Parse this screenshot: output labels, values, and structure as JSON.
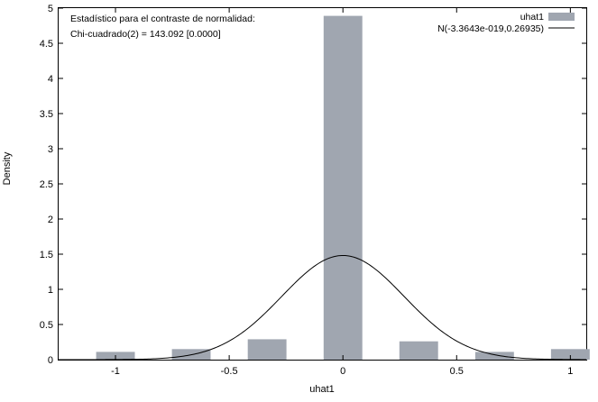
{
  "chart_data": {
    "type": "bar",
    "title": "",
    "xlabel": "uhat1",
    "ylabel": "Density",
    "xlim": [
      -1.25,
      1.07
    ],
    "ylim": [
      0,
      5
    ],
    "xticks": [
      -1,
      -0.5,
      0,
      0.5,
      1
    ],
    "xtick_labels": [
      "-1",
      "-0.5",
      "0",
      "0.5",
      "1"
    ],
    "yticks": [
      0,
      0.5,
      1,
      1.5,
      2,
      2.5,
      3,
      3.5,
      4,
      4.5,
      5
    ],
    "ytick_labels": [
      "0",
      "0.5",
      "1",
      "1.5",
      "2",
      "2.5",
      "3",
      "3.5",
      "4",
      "4.5",
      "5"
    ],
    "grid": false,
    "legend_position": "top-right",
    "bar_width": 0.17,
    "series": [
      {
        "name": "uhat1",
        "type": "bar",
        "color": "#a0a6b0",
        "x": [
          -1.0,
          -0.6667,
          -0.3333,
          0.0,
          0.3333,
          0.6667,
          1.0
        ],
        "values": [
          0.11,
          0.15,
          0.29,
          4.89,
          0.26,
          0.11,
          0.15
        ]
      },
      {
        "name": "N(-3.3643e-019,0.26935)",
        "type": "line",
        "color": "#000000",
        "mean": 0,
        "sd": 0.26935
      }
    ],
    "annotations": [
      "Estadístico para el contraste de normalidad:",
      "Chi-cuadrado(2) = 143.092 [0.0000]"
    ]
  }
}
